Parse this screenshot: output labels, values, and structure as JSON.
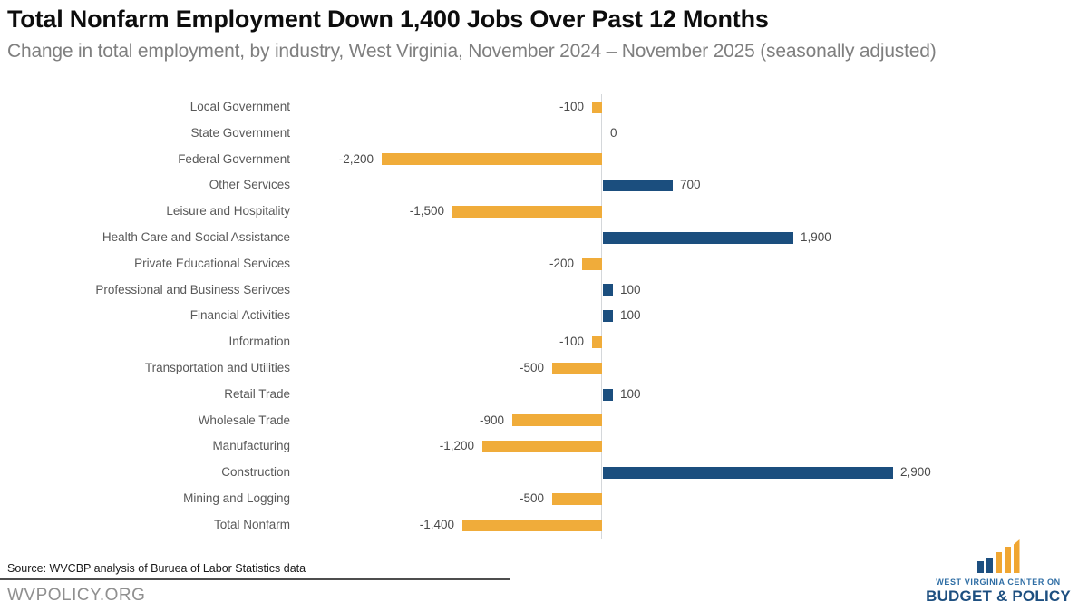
{
  "chart_data": {
    "type": "bar",
    "orientation": "horizontal",
    "title": "Total Nonfarm Employment Down 1,400 Jobs Over Past 12 Months",
    "subtitle": "Change in total employment, by industry, West Virginia, November 2024 – November 2025 (seasonally adjusted)",
    "categories": [
      "Local Government",
      "State Government",
      "Federal Government",
      "Other Services",
      "Leisure and Hospitality",
      "Health Care and Social Assistance",
      "Private Educational Services",
      "Professional and Business Serivces",
      "Financial Activities",
      "Information",
      "Transportation and Utilities",
      "Retail Trade",
      "Wholesale Trade",
      "Manufacturing",
      "Construction",
      "Mining and Logging",
      "Total Nonfarm"
    ],
    "values": [
      -100,
      0,
      -2200,
      700,
      -1500,
      1900,
      -200,
      100,
      100,
      -100,
      -500,
      100,
      -900,
      -1200,
      2900,
      -500,
      -1400
    ],
    "value_labels": [
      "-100",
      "0",
      "-2,200",
      "700",
      "-1,500",
      "1,900",
      "-200",
      "100",
      "100",
      "-100",
      "-500",
      "100",
      "-900",
      "-1,200",
      "2,900",
      "-500",
      "-1,400"
    ],
    "xlabel": "",
    "ylabel": "",
    "xlim": [
      -2200,
      2900
    ],
    "grid": false,
    "legend": "none",
    "data_labels": true
  },
  "colors": {
    "positive": "#1b4e7e",
    "negative": "#f0ac3a",
    "axis": "#d4d7da",
    "category_label": "#595959",
    "value_label": "#4a4a4a",
    "subtitle": "#7f7f7f",
    "site_text": "#8f8f8f",
    "logo_blue": "#1d4f80",
    "logo_gold": "#f0a632"
  },
  "footer": {
    "source": "Source: WVCBP analysis of Buruea of Labor Statistics data",
    "site": "WVPOLICY.ORG"
  },
  "logo": {
    "line1": "WEST VIRGINIA CENTER ON",
    "line2": "BUDGET & POLICY"
  }
}
